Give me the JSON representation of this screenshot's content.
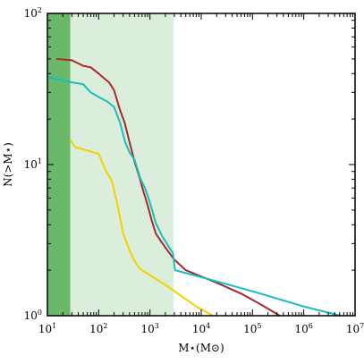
{
  "chart_data": {
    "type": "line",
    "xlabel": "M⋆(M⊙)",
    "ylabel": "N(>M⋆)",
    "xscale": "log",
    "yscale": "log",
    "xlim": [
      10,
      10000000
    ],
    "ylim": [
      1,
      100
    ],
    "x_ticks": [
      {
        "base": "10",
        "exp": "1"
      },
      {
        "base": "10",
        "exp": "2"
      },
      {
        "base": "10",
        "exp": "3"
      },
      {
        "base": "10",
        "exp": "4"
      },
      {
        "base": "10",
        "exp": "5"
      },
      {
        "base": "10",
        "exp": "6"
      },
      {
        "base": "10",
        "exp": "7"
      }
    ],
    "y_ticks": [
      {
        "base": "10",
        "exp": "0"
      },
      {
        "base": "10",
        "exp": "1"
      },
      {
        "base": "10",
        "exp": "2"
      }
    ],
    "grid": false,
    "shaded_regions": [
      {
        "x": [
          10,
          28
        ],
        "color": "#6ab96a"
      },
      {
        "x": [
          28,
          2900
        ],
        "color": "#dbeedb"
      }
    ],
    "series": [
      {
        "color": "#a52a2a",
        "x": [
          15,
          30,
          50,
          70,
          100,
          130,
          160,
          200,
          260,
          320,
          400,
          500,
          620,
          750,
          900,
          1100,
          1300,
          1700,
          2200,
          3000,
          5000,
          20000,
          60000,
          150000,
          340000
        ],
        "y": [
          50,
          49,
          45,
          44,
          40,
          37,
          35,
          31,
          23,
          19,
          14,
          10.5,
          8.3,
          6.6,
          5.4,
          4.2,
          3.5,
          3.05,
          2.7,
          2.35,
          2.0,
          1.65,
          1.4,
          1.18,
          1.0
        ]
      },
      {
        "color": "#1abcbc",
        "x": [
          10,
          30,
          50,
          70,
          100,
          150,
          200,
          260,
          330,
          400,
          500,
          650,
          800,
          1000,
          1300,
          1700,
          2200,
          2800,
          3100,
          10000,
          100000,
          1000000,
          5200000
        ],
        "y": [
          38,
          35,
          34,
          30,
          28,
          26,
          24,
          19,
          14,
          12,
          10.8,
          8.1,
          7.0,
          5.6,
          4.1,
          3.4,
          2.95,
          2.6,
          2.0,
          1.8,
          1.45,
          1.15,
          1.0
        ]
      },
      {
        "color": "#f5d000",
        "x": [
          28,
          35,
          50,
          100,
          140,
          180,
          230,
          300,
          400,
          500,
          600,
          700,
          2000,
          8000,
          17000
        ],
        "y": [
          14.5,
          13,
          12.6,
          11.8,
          9.0,
          7.8,
          5.5,
          3.5,
          2.7,
          2.3,
          2.1,
          2.0,
          1.6,
          1.15,
          1.0
        ]
      }
    ]
  }
}
